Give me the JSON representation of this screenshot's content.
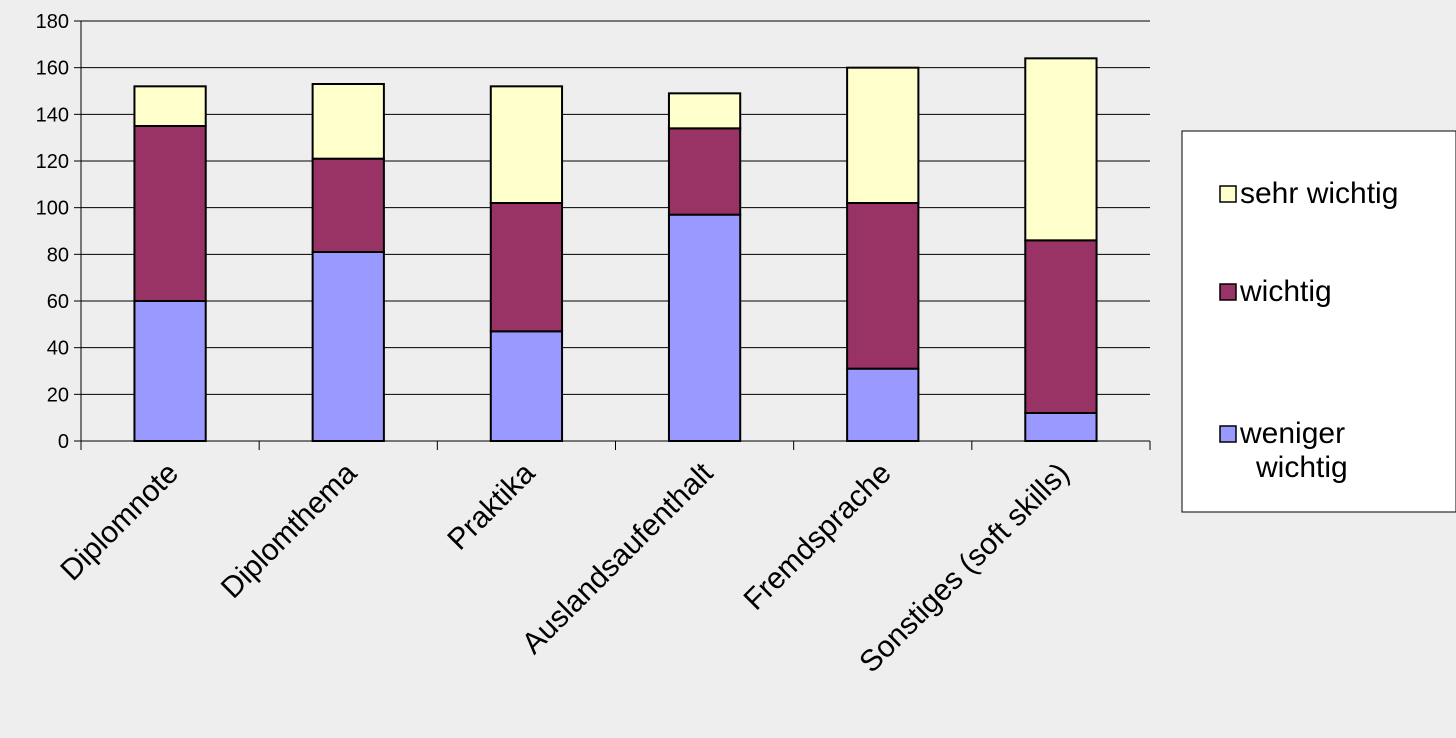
{
  "chart_data": {
    "type": "bar",
    "stacked": true,
    "categories": [
      "Diplomnote",
      "Diplomthema",
      "Praktika",
      "Auslandsaufenthalt",
      "Fremdsprache",
      "Sonstiges (soft skills)"
    ],
    "series": [
      {
        "name": "weniger wichtig",
        "values": [
          60,
          81,
          47,
          97,
          31,
          12
        ],
        "color": "#9999ff"
      },
      {
        "name": "wichtig",
        "values": [
          75,
          40,
          55,
          37,
          71,
          74
        ],
        "color": "#993366"
      },
      {
        "name": "sehr wichtig",
        "values": [
          17,
          32,
          50,
          15,
          58,
          78
        ],
        "color": "#ffffcc"
      }
    ],
    "legend": {
      "placement": "right",
      "entries": [
        {
          "series": 2,
          "lines": [
            "sehr wichtig"
          ]
        },
        {
          "series": 1,
          "lines": [
            "wichtig"
          ]
        },
        {
          "series": 0,
          "lines": [
            "weniger",
            "wichtig"
          ]
        }
      ]
    },
    "ylim": [
      0,
      180
    ],
    "yticks": [
      "0",
      "20",
      "40",
      "60",
      "80",
      "100",
      "120",
      "140",
      "160",
      "180"
    ],
    "grid": true,
    "colors": {
      "background": "#eeeeee",
      "gridline": "#000000",
      "bar_border": "#000000",
      "legend_background": "#ffffff"
    }
  }
}
